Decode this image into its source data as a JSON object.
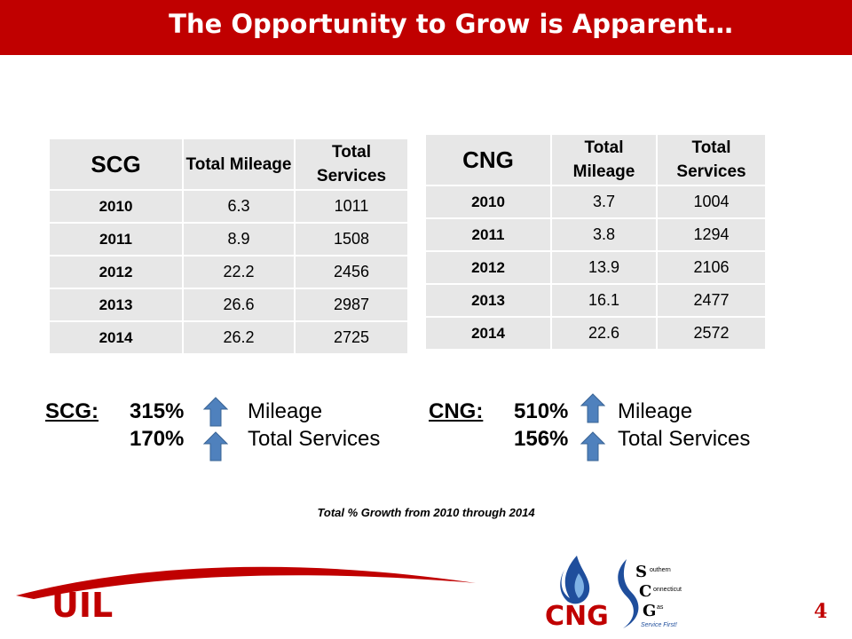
{
  "title": "The Opportunity to Grow is Apparent…",
  "scg_table": {
    "name": "SCG",
    "col1": "Total Mileage",
    "col2": "Total Services",
    "rows": [
      {
        "year": "2010",
        "mileage": "6.3",
        "services": "1011"
      },
      {
        "year": "2011",
        "mileage": "8.9",
        "services": "1508"
      },
      {
        "year": "2012",
        "mileage": "22.2",
        "services": "2456"
      },
      {
        "year": "2013",
        "mileage": "26.6",
        "services": "2987"
      },
      {
        "year": "2014",
        "mileage": "26.2",
        "services": "2725"
      }
    ]
  },
  "cng_table": {
    "name": "CNG",
    "col1": "Total Mileage",
    "col2": "Total Services",
    "rows": [
      {
        "year": "2010",
        "mileage": "3.7",
        "services": "1004"
      },
      {
        "year": "2011",
        "mileage": "3.8",
        "services": "1294"
      },
      {
        "year": "2012",
        "mileage": "13.9",
        "services": "2106"
      },
      {
        "year": "2013",
        "mileage": "16.1",
        "services": "2477"
      },
      {
        "year": "2014",
        "mileage": "22.6",
        "services": "2572"
      }
    ]
  },
  "growth": {
    "scg_label": "SCG:",
    "scg_mileage_pct": "315%",
    "scg_services_pct": "170%",
    "cng_label": "CNG:",
    "cng_mileage_pct": "510%",
    "cng_services_pct": "156%",
    "mileage_label": "Mileage",
    "services_label": "Total Services"
  },
  "footnote": "Total % Growth from 2010 through 2014",
  "logos": {
    "uil": "UIL",
    "cng": "CNG",
    "scg_letters": [
      "S",
      "C",
      "G"
    ],
    "scg_lines": [
      "outhern",
      "onnecticut",
      "as"
    ],
    "scg_tagline": "Service First!"
  },
  "colors": {
    "banner": "#c00000",
    "cell": "#e7e7e7",
    "arrow": "#4f81bd"
  },
  "page_number": "4"
}
